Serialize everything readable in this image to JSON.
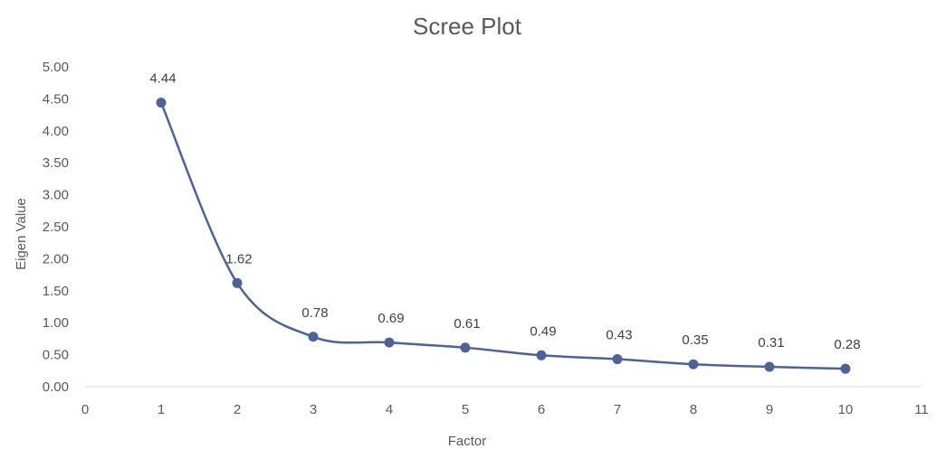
{
  "chart_data": {
    "type": "line",
    "title": "Scree Plot",
    "xlabel": "Factor",
    "ylabel": "Eigen Value",
    "x": [
      1,
      2,
      3,
      4,
      5,
      6,
      7,
      8,
      9,
      10
    ],
    "series": [
      {
        "values": [
          4.44,
          1.62,
          0.78,
          0.69,
          0.61,
          0.49,
          0.43,
          0.35,
          0.31,
          0.28
        ]
      }
    ],
    "data_labels": [
      "4.44",
      "1.62",
      "0.78",
      "0.69",
      "0.61",
      "0.49",
      "0.43",
      "0.35",
      "0.31",
      "0.28"
    ],
    "xlim": [
      0,
      11
    ],
    "ylim": [
      0,
      5
    ],
    "x_ticks": [
      "0",
      "1",
      "2",
      "3",
      "4",
      "5",
      "6",
      "7",
      "8",
      "9",
      "10",
      "11"
    ],
    "y_ticks": [
      "0.00",
      "0.50",
      "1.00",
      "1.50",
      "2.00",
      "2.50",
      "3.00",
      "3.50",
      "4.00",
      "4.50",
      "5.00"
    ],
    "grid": false,
    "legend": "none",
    "smooth": true,
    "colors": {
      "line": "#4e6298",
      "marker": "#4e6298",
      "text": "#595959"
    }
  }
}
